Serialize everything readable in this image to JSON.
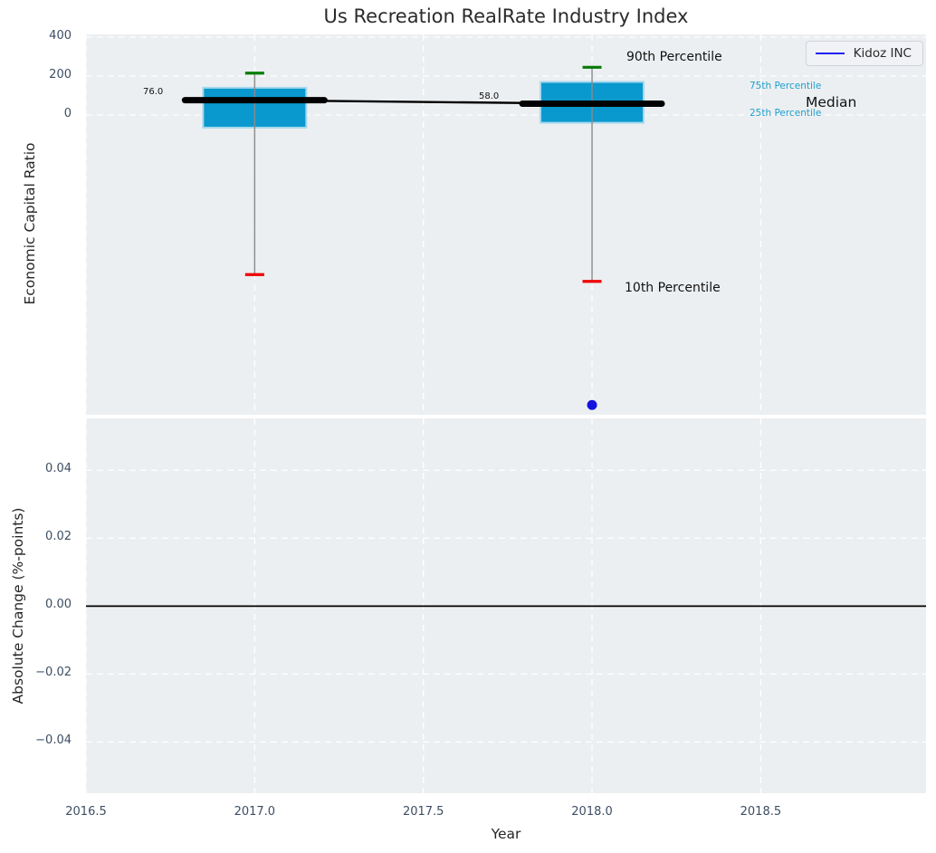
{
  "title": "Us Recreation RealRate Industry Index",
  "xlabel": "Year",
  "legend": {
    "label": "Kidoz INC"
  },
  "annotations": {
    "p90": "90th Percentile",
    "p10": "10th Percentile",
    "p75": "75th Percentile",
    "median": "Median",
    "p25": "25th Percentile"
  },
  "colors": {
    "box_fill": "#0a99ce",
    "box_edge": "#a5d8ee",
    "median_line": "#000000",
    "whisker": "#8a8a8a",
    "cap_top": "#067d06",
    "cap_bottom": "#ee0000",
    "company_point": "#1414dd",
    "percentile_label": "#1d9fd0",
    "axes_bg": "#eceff1",
    "grid": "#ffffff",
    "tick_label": "#3d4d63",
    "zero_line": "#000000"
  },
  "axes": {
    "x": {
      "ticks": [
        2016.5,
        2017.0,
        2017.5,
        2018.0,
        2018.5
      ],
      "tick_labels": [
        "2016.5",
        "2017.0",
        "2017.5",
        "2018.0",
        "2018.5"
      ],
      "lim": [
        2016.5,
        2018.99
      ]
    },
    "top_y": {
      "label": "Economic Capital Ratio",
      "ticks": [
        400,
        200,
        0
      ],
      "tick_labels": [
        "400",
        "200",
        "0"
      ],
      "lim": [
        -1540,
        414
      ]
    },
    "bottom_y": {
      "label": "Absolute Change (%-points)",
      "ticks": [
        0.04,
        0.02,
        0.0,
        -0.02,
        -0.04
      ],
      "tick_labels": [
        "0.04",
        "0.02",
        "0.00",
        "−0.02",
        "−0.04"
      ],
      "lim": [
        -0.0551,
        0.0553
      ]
    }
  },
  "chart_data": {
    "type": "boxplot-timeseries",
    "title": "Us Recreation RealRate Industry Index",
    "xlabel": "Year",
    "xlim": [
      2016.5,
      2018.99
    ],
    "xticks": [
      2016.5,
      2017.0,
      2017.5,
      2018.0,
      2018.5
    ],
    "grid": "white dashed on light-gray panels",
    "legend_position": "top-right",
    "top_panel": {
      "ylabel": "Economic Capital Ratio",
      "ylim": [
        -1540,
        414
      ],
      "yticks": [
        400,
        200,
        0
      ],
      "boxes": [
        {
          "year": 2017,
          "p90": 215,
          "p75": 140,
          "median": 76.0,
          "p25": -65,
          "p10": -820,
          "median_label": "76.0"
        },
        {
          "year": 2018,
          "p90": 245,
          "p75": 170,
          "median": 58.0,
          "p25": -40,
          "p10": -855,
          "median_label": "58.0"
        }
      ],
      "median_trend": {
        "x": [
          2017,
          2018
        ],
        "y": [
          76.0,
          58.0
        ]
      },
      "company_series": {
        "name": "Kidoz INC",
        "points": [
          {
            "year": 2018,
            "value": -1490
          }
        ]
      }
    },
    "bottom_panel": {
      "ylabel": "Absolute Change (%-points)",
      "ylim": [
        -0.0551,
        0.0553
      ],
      "yticks": [
        0.04,
        0.02,
        0.0,
        -0.02,
        -0.04
      ],
      "zero_line": 0.0,
      "series": []
    }
  }
}
